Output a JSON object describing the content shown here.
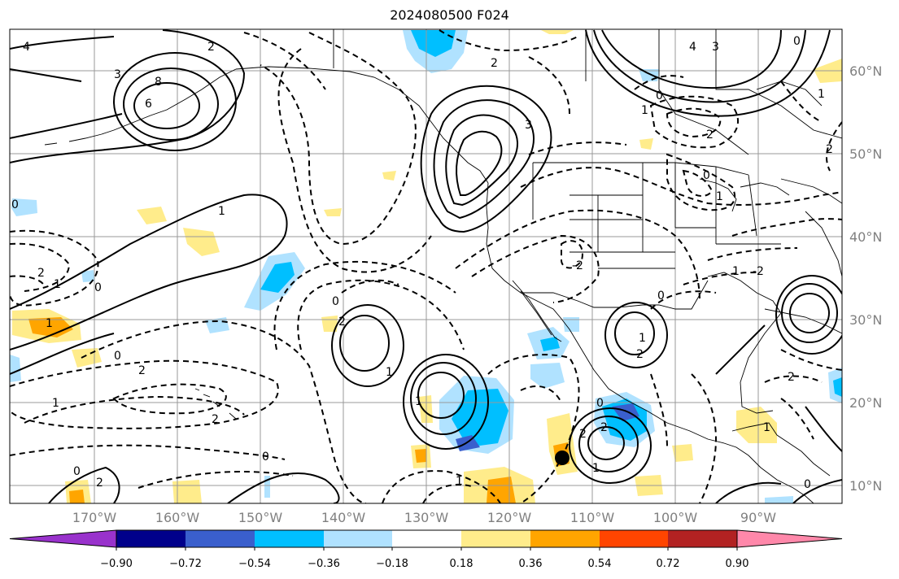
{
  "title": "2024080500 F024",
  "lat_labels": [
    "60°N",
    "50°N",
    "40°N",
    "30°N",
    "20°N",
    "10°N"
  ],
  "lon_labels": [
    "170°W",
    "160°W",
    "150°W",
    "140°W",
    "130°W",
    "120°W",
    "110°W",
    "100°W",
    "90°W"
  ],
  "colorbar": {
    "colors": [
      "#9932cc",
      "#00008b",
      "#3a5fcd",
      "#00bfff",
      "#b0e2ff",
      "#ffffff",
      "#ffec8b",
      "#ffa500",
      "#ff4500",
      "#b22222",
      "#ff88aa"
    ],
    "ticks": [
      "−0.90",
      "−0.72",
      "−0.54",
      "−0.36",
      "−0.18",
      "0.18",
      "0.36",
      "0.54",
      "0.72",
      "0.90"
    ]
  },
  "contour_labels": [
    "4",
    "3",
    "8",
    "6",
    "2",
    "2",
    "3",
    "4",
    "3",
    "1",
    "0",
    "0",
    "2",
    "0",
    "1",
    "0",
    "2",
    "1",
    "0",
    "1",
    "2",
    "0",
    "1",
    "2",
    "2",
    "0",
    "1",
    "1",
    "0",
    "0",
    "2",
    "1",
    "1",
    "2",
    "1",
    "2",
    "0",
    "-2",
    "1",
    "2",
    "0",
    "1",
    "-2",
    "2",
    "0",
    "1",
    "2",
    "1"
  ]
}
